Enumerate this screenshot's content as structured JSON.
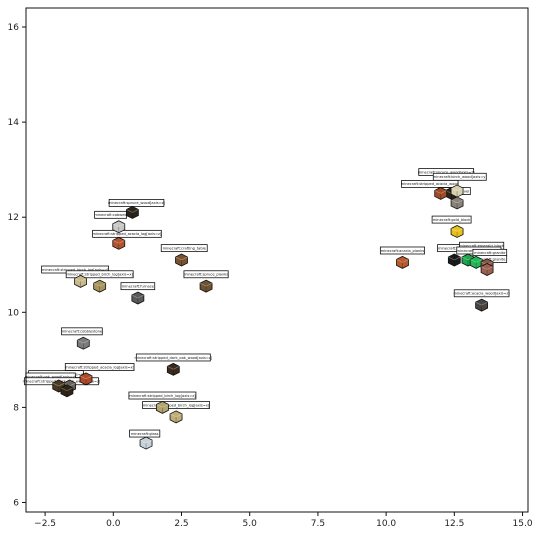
{
  "chart_data": {
    "type": "scatter",
    "title": "",
    "xlabel": "",
    "ylabel": "",
    "xlim": [
      -3.2,
      15.2
    ],
    "ylim": [
      5.8,
      16.4
    ],
    "xticks": [
      -2.5,
      0.0,
      2.5,
      5.0,
      7.5,
      10.0,
      12.5,
      15.0
    ],
    "xtick_labels": [
      "−2.5",
      "0.0",
      "2.5",
      "5.0",
      "7.5",
      "10.0",
      "12.5",
      "15.0"
    ],
    "yticks": [
      6,
      8,
      10,
      12,
      14,
      16
    ],
    "ytick_labels": [
      "6",
      "8",
      "10",
      "12",
      "14",
      "16"
    ],
    "grid": false,
    "points": [
      {
        "x": 0.7,
        "y": 12.1,
        "label": "minecraft:spruce_wood[axis=z]",
        "color": "#2a2418",
        "lx": 0.85,
        "ly": 12.3
      },
      {
        "x": 0.2,
        "y": 11.8,
        "label": "minecraft:cobweb",
        "color": "#c8c8c8",
        "lx": -0.1,
        "ly": 12.05
      },
      {
        "x": 0.2,
        "y": 11.45,
        "label": "minecraft:stripped_acacia_log[axis=z]",
        "color": "#b5532e",
        "lx": 0.5,
        "ly": 11.65
      },
      {
        "x": 2.5,
        "y": 11.1,
        "label": "minecraft:crafting_table",
        "color": "#7a5230",
        "lx": 2.6,
        "ly": 11.35
      },
      {
        "x": 3.4,
        "y": 10.55,
        "label": "minecraft:spruce_planks",
        "color": "#6e5232",
        "lx": 3.4,
        "ly": 10.8
      },
      {
        "x": -1.2,
        "y": 10.65,
        "label": "minecraft:stripped_birch_log[axis=z]",
        "color": "#c8b98a",
        "lx": -1.4,
        "ly": 10.9
      },
      {
        "x": -0.5,
        "y": 10.55,
        "label": "minecraft:stripped_birch_log[axis=x]",
        "color": "#a8955c",
        "lx": -0.5,
        "ly": 10.8
      },
      {
        "x": 0.9,
        "y": 10.3,
        "label": "minecraft:furnace",
        "color": "#5a5a5a",
        "lx": 0.9,
        "ly": 10.55
      },
      {
        "x": -1.1,
        "y": 9.35,
        "label": "minecraft:cobblestone",
        "color": "#7c7c7c",
        "lx": -1.15,
        "ly": 9.6
      },
      {
        "x": 2.2,
        "y": 8.8,
        "label": "minecraft:stripped_dark_oak_wood[axis=z]",
        "color": "#3c2a1c",
        "lx": 2.2,
        "ly": 9.05
      },
      {
        "x": -1.0,
        "y": 8.6,
        "label": "minecraft:stripped_acacia_log[axis=x]",
        "color": "#b04a28",
        "lx": -0.5,
        "ly": 8.85
      },
      {
        "x": -1.6,
        "y": 8.45,
        "label": "minecraft:acacia_wood[axis=x]",
        "color": "#6a6258",
        "lx": -2.1,
        "ly": 8.7
      },
      {
        "x": -2.0,
        "y": 8.45,
        "label": "minecraft:oak_wood[axis=z]",
        "color": "#4a3a22",
        "lx": -2.3,
        "ly": 8.65
      },
      {
        "x": -1.7,
        "y": 8.35,
        "label": "minecraft:stripped_dark_oak_wood[axis=z]",
        "color": "#2e2418",
        "lx": -1.9,
        "ly": 8.55
      },
      {
        "x": 1.8,
        "y": 8.0,
        "label": "minecraft:stripped_birch_log[axis=z]",
        "color": "#b4a470",
        "lx": 1.8,
        "ly": 8.25
      },
      {
        "x": 2.3,
        "y": 7.8,
        "label": "minecraft:stripped_birch_log[axis=x]",
        "color": "#c0ae78",
        "lx": 2.3,
        "ly": 8.05
      },
      {
        "x": 1.2,
        "y": 7.25,
        "label": "minecraft:glass",
        "color": "#c8d2d8",
        "lx": 1.15,
        "ly": 7.45
      },
      {
        "x": 12.4,
        "y": 12.5,
        "label": "minecraft:spruce_wood[axis=z]",
        "color": "#2a2418",
        "lx": 12.2,
        "ly": 12.95
      },
      {
        "x": 12.6,
        "y": 12.55,
        "label": "minecraft:birch_wood[axis=y]",
        "color": "#d8d0b0",
        "lx": 12.7,
        "ly": 12.85
      },
      {
        "x": 12.0,
        "y": 12.5,
        "label": "minecraft:stripped_acacia_wood",
        "color": "#a04a26",
        "lx": 11.6,
        "ly": 12.7
      },
      {
        "x": 12.6,
        "y": 12.3,
        "label": "minecraft:gravel",
        "color": "#8a8278",
        "lx": 12.5,
        "ly": 12.55
      },
      {
        "x": 12.6,
        "y": 11.7,
        "label": "minecraft:gold_block",
        "color": "#e8c21a",
        "lx": 12.4,
        "ly": 11.95
      },
      {
        "x": 10.6,
        "y": 11.05,
        "label": "minecraft:acacia_planks",
        "color": "#b85a2a",
        "lx": 10.6,
        "ly": 11.3
      },
      {
        "x": 12.5,
        "y": 11.1,
        "label": "minecraft:black_wool",
        "color": "#1a1a1a",
        "lx": 12.6,
        "ly": 11.35
      },
      {
        "x": 13.0,
        "y": 11.1,
        "label": "minecraft:emerald_block",
        "color": "#1aa84a",
        "lx": 13.5,
        "ly": 11.4
      },
      {
        "x": 13.3,
        "y": 11.05,
        "label": "minecraft:emerald_block",
        "color": "#22b855",
        "lx": 13.4,
        "ly": 11.3
      },
      {
        "x": 13.7,
        "y": 11.0,
        "label": "minecraft:granite",
        "color": "#8a5848",
        "lx": 13.8,
        "ly": 11.25
      },
      {
        "x": 13.7,
        "y": 10.9,
        "label": "minecraft:granite",
        "color": "#9a6050",
        "lx": 13.8,
        "ly": 11.12
      },
      {
        "x": 13.5,
        "y": 10.15,
        "label": "minecraft:acacia_wood[axis=z]",
        "color": "#4a4440",
        "lx": 13.5,
        "ly": 10.4
      }
    ]
  }
}
